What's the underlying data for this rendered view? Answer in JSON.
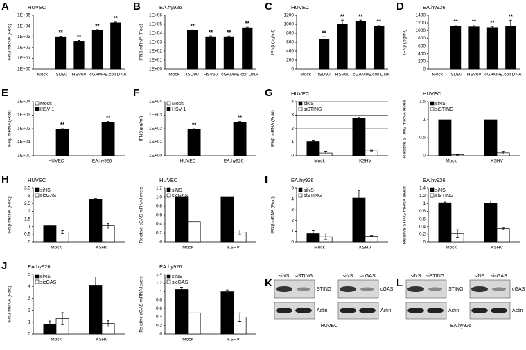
{
  "chart_data": [
    {
      "type": "bar",
      "panel": "A",
      "title": "HUVEC",
      "y_label": "IFNβ mRNA (Fold)",
      "log": true,
      "categories": [
        "Mock",
        "ISD90",
        "HSV60",
        "cGAMP",
        "E.coli DNA"
      ],
      "values": [
        1,
        1000,
        400,
        4000,
        20000
      ],
      "errors": [
        0,
        100,
        60,
        600,
        3000
      ],
      "annotations": [
        null,
        "**",
        "**",
        "**",
        "**"
      ],
      "color": "#000000",
      "ylim": [
        1,
        100000
      ],
      "yticks": [
        {
          "value": 1,
          "label": "1E+00"
        },
        {
          "value": 10,
          "label": "1E+01"
        },
        {
          "value": 100,
          "label": "1E+02"
        },
        {
          "value": 1000,
          "label": "1E+03"
        },
        {
          "value": 10000,
          "label": "1E+04"
        },
        {
          "value": 100000,
          "label": "1E+05"
        }
      ],
      "grid": false
    },
    {
      "type": "bar",
      "panel": "B",
      "title": "EA.hy926",
      "y_label": "IFNβ mRNA (Fold)",
      "log": true,
      "categories": [
        "Mock",
        "ISD90",
        "HSV60",
        "cGAMP",
        "E.coli DNA"
      ],
      "values": [
        1,
        20000,
        4000,
        4000,
        40000
      ],
      "errors": [
        0,
        3000,
        800,
        700,
        8000
      ],
      "annotations": [
        null,
        "**",
        "**",
        "**",
        "**"
      ],
      "color": "#000000",
      "ylim": [
        1,
        1000000
      ],
      "yticks": [
        {
          "value": 1,
          "label": "1E+00"
        },
        {
          "value": 10,
          "label": "1E+01"
        },
        {
          "value": 100,
          "label": "1E+02"
        },
        {
          "value": 1000,
          "label": "1E+03"
        },
        {
          "value": 10000,
          "label": "1E+04"
        },
        {
          "value": 100000,
          "label": "1E+05"
        },
        {
          "value": 1000000,
          "label": "1E+06"
        }
      ],
      "grid": false
    },
    {
      "type": "bar",
      "panel": "C",
      "title": "HUVEC",
      "y_label": "IFNβ (pg/ml)",
      "log": false,
      "categories": [
        "Mock",
        "ISD90",
        "HSV60",
        "cGAMP",
        "E.coli DNA"
      ],
      "values": [
        0,
        660,
        1010,
        1070,
        950
      ],
      "errors": [
        0,
        60,
        80,
        20,
        20
      ],
      "annotations": [
        null,
        "**",
        "**",
        "**",
        "**"
      ],
      "color": "#000000",
      "ylim": [
        0,
        1200
      ],
      "yticks": [
        0,
        200,
        400,
        600,
        800,
        1000,
        1200
      ],
      "grid": false
    },
    {
      "type": "bar",
      "panel": "D",
      "title": "EA.hy926",
      "y_label": "IFNβ (pg/ml)",
      "log": false,
      "categories": [
        "Mock",
        "ISD90",
        "HSV60",
        "cGAMP",
        "E.coli DNA"
      ],
      "values": [
        0,
        1110,
        1100,
        1080,
        1120
      ],
      "errors": [
        0,
        20,
        30,
        30,
        150
      ],
      "annotations": [
        null,
        "**",
        "**",
        "**",
        "**"
      ],
      "color": "#000000",
      "ylim": [
        0,
        1400
      ],
      "yticks": [
        0,
        200,
        400,
        600,
        800,
        1000,
        1200,
        1400
      ],
      "grid": false
    },
    {
      "type": "bar",
      "panel": "E",
      "y_label": "IFNβ mRNA (Fold)",
      "log": true,
      "categories": [
        "HUVEC",
        "EA.hy926"
      ],
      "series": [
        {
          "name": "Mock",
          "color": "#ffffff",
          "values": [
            1,
            1
          ],
          "errors": [
            0,
            0
          ]
        },
        {
          "name": "HSV-1",
          "color": "#000000",
          "values": [
            90,
            300
          ],
          "errors": [
            10,
            40
          ],
          "annotations": [
            "**",
            "**"
          ]
        }
      ],
      "legend": "top-left",
      "ylim": [
        1,
        10000
      ],
      "yticks": [
        {
          "value": 1,
          "label": "1E+00"
        },
        {
          "value": 10,
          "label": "1E+01"
        },
        {
          "value": 100,
          "label": "1E+02"
        },
        {
          "value": 1000,
          "label": "1E+03"
        },
        {
          "value": 10000,
          "label": "1E+04"
        }
      ],
      "grid": false
    },
    {
      "type": "bar",
      "panel": "F",
      "y_label": "IFNβ  (pg/ml)",
      "log": true,
      "categories": [
        "HUVEC",
        "EA.hy926"
      ],
      "series": [
        {
          "name": "Mock",
          "color": "#ffffff",
          "values": [
            1,
            1
          ],
          "errors": [
            0,
            0
          ]
        },
        {
          "name": "HSV-1",
          "color": "#000000",
          "values": [
            90,
            300
          ],
          "errors": [
            10,
            40
          ],
          "annotations": [
            "**",
            "**"
          ]
        }
      ],
      "legend": "top-left",
      "ylim": [
        1,
        10000
      ],
      "yticks": [
        {
          "value": 1,
          "label": "1E+00"
        },
        {
          "value": 10,
          "label": "1E+01"
        },
        {
          "value": 100,
          "label": "1E+02"
        },
        {
          "value": 1000,
          "label": "1E+03"
        },
        {
          "value": 10000,
          "label": "1E+04"
        }
      ],
      "grid": false
    },
    {
      "type": "bar",
      "panel": "G",
      "title": "HUVEC",
      "y_label": "IFNβ mRNA (Fold)",
      "log": false,
      "categories": [
        "Mock",
        "KSHV"
      ],
      "series": [
        {
          "name": "siNS",
          "color": "#000000",
          "values": [
            1.05,
            2.8
          ],
          "errors": [
            0.05,
            0.03
          ]
        },
        {
          "name": "siSTING",
          "color": "#ffffff",
          "values": [
            0.2,
            0.35
          ],
          "errors": [
            0.08,
            0.05
          ]
        }
      ],
      "legend": "top-left",
      "ylim": [
        0,
        4
      ],
      "yticks": [
        0,
        1,
        2,
        3,
        4
      ],
      "grid": true
    },
    {
      "type": "bar",
      "title": "HUVEC",
      "y_label": "Relative STING mRNA levels",
      "log": false,
      "categories": [
        "Mock",
        "KSHV"
      ],
      "series": [
        {
          "name": "siNS",
          "color": "#000000",
          "values": [
            1,
            1
          ],
          "errors": [
            0,
            0
          ]
        },
        {
          "name": "siSTING",
          "color": "#ffffff",
          "values": [
            0.03,
            0.08
          ],
          "errors": [
            0.01,
            0.03
          ]
        }
      ],
      "legend": "top-left",
      "ylim": [
        0,
        1.5
      ],
      "yticks": [
        0,
        0.5,
        1,
        1.5
      ],
      "grid": false
    },
    {
      "type": "bar",
      "panel": "H",
      "title": "HUVEC",
      "y_label": "IFNβ mRNA  (Fold)",
      "log": false,
      "categories": [
        "Mock",
        "KSHV"
      ],
      "series": [
        {
          "name": "siNS",
          "color": "#000000",
          "values": [
            1.05,
            2.8
          ],
          "errors": [
            0.05,
            0.04
          ]
        },
        {
          "name": "sicGAS",
          "color": "#ffffff",
          "values": [
            0.65,
            1.05
          ],
          "errors": [
            0.1,
            0.15
          ]
        }
      ],
      "legend": "top-left",
      "ylim": [
        0,
        3.5
      ],
      "yticks": [
        0,
        0.5,
        1,
        1.5,
        2,
        2.5,
        3,
        3.5
      ],
      "grid": false
    },
    {
      "type": "bar",
      "title": "HUVEC",
      "y_label": "Relative cGAS mRNA levels",
      "log": false,
      "categories": [
        "Mock",
        "KSHV"
      ],
      "series": [
        {
          "name": "siNS",
          "color": "#000000",
          "values": [
            1,
            1
          ],
          "errors": [
            0,
            0
          ]
        },
        {
          "name": "sicGAS",
          "color": "#ffffff",
          "values": [
            0.45,
            0.22
          ],
          "errors": [
            0,
            0.05
          ]
        }
      ],
      "legend": "top-left",
      "ylim": [
        0,
        1.2
      ],
      "yticks": [
        0,
        0.2,
        0.4,
        0.6,
        0.8,
        {
          "value": 1,
          "label": "1.0"
        },
        1.2
      ],
      "grid": false
    },
    {
      "type": "bar",
      "panel": "I",
      "title": "EA.hy926",
      "y_label": "IFNβ mRNA (Fold)",
      "log": false,
      "categories": [
        "Mock",
        "KSHV"
      ],
      "series": [
        {
          "name": "siNS",
          "color": "#000000",
          "values": [
            0.8,
            4.1
          ],
          "errors": [
            0.25,
            0.7
          ]
        },
        {
          "name": "siSTING",
          "color": "#ffffff",
          "values": [
            0.5,
            0.55
          ],
          "errors": [
            0.25,
            0.05
          ]
        }
      ],
      "legend": "top-left",
      "ylim": [
        0,
        5
      ],
      "yticks": [
        0,
        1,
        2,
        3,
        4,
        5
      ],
      "grid": false
    },
    {
      "type": "bar",
      "title": "EA.hy926",
      "y_label": "Relative STING mRNA levels",
      "log": false,
      "categories": [
        "Mock",
        "KSHV"
      ],
      "series": [
        {
          "name": "siNS",
          "color": "#000000",
          "values": [
            1.02,
            1
          ],
          "errors": [
            0.02,
            0.07
          ]
        },
        {
          "name": "siSTING",
          "color": "#ffffff",
          "values": [
            0.22,
            0.35
          ],
          "errors": [
            0.1,
            0.03
          ]
        }
      ],
      "legend": "top-left",
      "ylim": [
        0,
        1.4
      ],
      "yticks": [
        0,
        0.2,
        0.4,
        0.6,
        0.8,
        1,
        1.2,
        1.4
      ],
      "grid": false
    },
    {
      "type": "bar",
      "panel": "J",
      "title": "EA.hy926",
      "y_label": "IFNβ mRNA (Fold)",
      "log": false,
      "categories": [
        "Mock",
        "KSHV"
      ],
      "series": [
        {
          "name": "siNS",
          "color": "#000000",
          "values": [
            0.8,
            4.1
          ],
          "errors": [
            0.3,
            0.7
          ]
        },
        {
          "name": "sicGAS",
          "color": "#ffffff",
          "values": [
            1.3,
            0.9
          ],
          "errors": [
            0.5,
            0.25
          ]
        }
      ],
      "legend": "top-left",
      "ylim": [
        0,
        5
      ],
      "yticks": [
        0,
        1,
        2,
        3,
        4,
        5
      ],
      "grid": false
    },
    {
      "type": "bar",
      "title": "EA.hy926",
      "y_label": "Relative cGAS mRNA levels",
      "log": false,
      "categories": [
        "Mock",
        "KSHV"
      ],
      "series": [
        {
          "name": "siNS",
          "color": "#000000",
          "values": [
            1.05,
            1
          ],
          "errors": [
            0.05,
            0.04
          ]
        },
        {
          "name": "sicGAS",
          "color": "#ffffff",
          "values": [
            0.5,
            0.4
          ],
          "errors": [
            0,
            0.1
          ]
        }
      ],
      "legend": "top-left",
      "ylim": [
        0,
        1.4
      ],
      "yticks": [
        0,
        0.2,
        0.4,
        0.6,
        0.8,
        1,
        1.2,
        1.4
      ],
      "grid": false
    }
  ],
  "blots": [
    {
      "panel": "K",
      "lanes_left": [
        "siNS",
        "siSTING"
      ],
      "target_left": "STING",
      "lanes_right": [
        "siNS",
        "sicGAS"
      ],
      "target_right": "cGAS",
      "loading": [
        "Actin",
        "Actin"
      ],
      "cell": "HUVEC"
    },
    {
      "panel": "L",
      "lanes_left": [
        "siNS",
        "siSTING"
      ],
      "target_left": "STING",
      "lanes_right": [
        "siNS",
        "sicGAS"
      ],
      "target_right": "cGAS",
      "loading": [
        "Actin",
        "Actin"
      ],
      "cell": "EA.hy926"
    }
  ]
}
